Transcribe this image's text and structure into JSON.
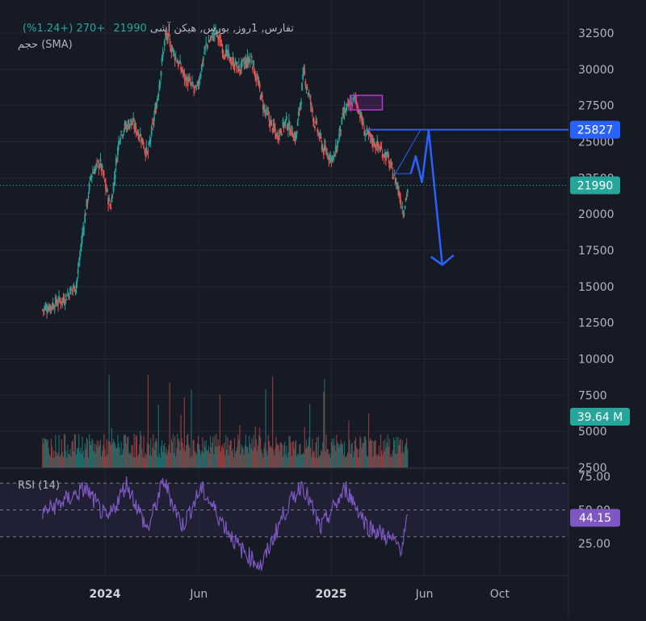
{
  "legend": {
    "symbol": "تفارس, 1روز, بورس, هیکن آشی",
    "price": "21990",
    "change": "+270 (+1.24%)",
    "volume_label": "حجم (SMA)"
  },
  "rsi_label": "RSI (14)",
  "colors": {
    "up": "#26a69a",
    "down": "#ef5350",
    "rsi": "#7e57c2",
    "projection": "#2962ff",
    "zone": "#9c27b0"
  },
  "chart_data": [
    {
      "type": "candlestick",
      "title": "",
      "candle_style": "Heikin Ashi",
      "x_tick_labels": [
        "2024",
        "Jun",
        "2025",
        "Jun",
        "Oct"
      ],
      "y_tick_labels": [
        "2500",
        "5000",
        "7500",
        "10000",
        "12500",
        "15000",
        "17500",
        "20000",
        "22500",
        "25000",
        "27500",
        "30000",
        "32500"
      ],
      "ylim": [
        2500,
        32500
      ],
      "grid": true,
      "last_price_label": "21990",
      "level_label": "25827",
      "approx_close_path": [
        {
          "x": "2023-09-22",
          "y": 13400
        },
        {
          "x": "2023-10-10",
          "y": 13800
        },
        {
          "x": "2023-10-28",
          "y": 14200
        },
        {
          "x": "2023-11-16",
          "y": 15200
        },
        {
          "x": "2023-11-26",
          "y": 18800
        },
        {
          "x": "2023-12-10",
          "y": 22800
        },
        {
          "x": "2023-12-24",
          "y": 23600
        },
        {
          "x": "2024-01-10",
          "y": 20400
        },
        {
          "x": "2024-01-25",
          "y": 25600
        },
        {
          "x": "2024-02-12",
          "y": 26400
        },
        {
          "x": "2024-02-28",
          "y": 25400
        },
        {
          "x": "2024-03-10",
          "y": 24000
        },
        {
          "x": "2024-03-25",
          "y": 27800
        },
        {
          "x": "2024-04-08",
          "y": 32400
        },
        {
          "x": "2024-04-25",
          "y": 30800
        },
        {
          "x": "2024-05-10",
          "y": 29400
        },
        {
          "x": "2024-05-28",
          "y": 28400
        },
        {
          "x": "2024-06-12",
          "y": 31600
        },
        {
          "x": "2024-06-28",
          "y": 32600
        },
        {
          "x": "2024-07-15",
          "y": 31000
        },
        {
          "x": "2024-08-05",
          "y": 30000
        },
        {
          "x": "2024-08-25",
          "y": 30800
        },
        {
          "x": "2024-09-15",
          "y": 27200
        },
        {
          "x": "2024-10-05",
          "y": 25400
        },
        {
          "x": "2024-10-20",
          "y": 26400
        },
        {
          "x": "2024-11-05",
          "y": 25200
        },
        {
          "x": "2024-11-18",
          "y": 29800
        },
        {
          "x": "2024-12-05",
          "y": 26400
        },
        {
          "x": "2024-12-20",
          "y": 24400
        },
        {
          "x": "2025-01-06",
          "y": 23800
        },
        {
          "x": "2025-01-22",
          "y": 27000
        },
        {
          "x": "2025-02-10",
          "y": 28000
        },
        {
          "x": "2025-02-25",
          "y": 25600
        },
        {
          "x": "2025-03-15",
          "y": 24800
        },
        {
          "x": "2025-04-01",
          "y": 24000
        },
        {
          "x": "2025-04-18",
          "y": 22000
        },
        {
          "x": "2025-04-28",
          "y": 20200
        },
        {
          "x": "2025-05-06",
          "y": 21990
        }
      ],
      "annotations": [
        {
          "type": "horizontal_line",
          "y": 25827
        },
        {
          "type": "horizontal_line",
          "y": 21990
        },
        {
          "type": "rectangle",
          "x": [
            "2025-02-01",
            "2025-03-25"
          ],
          "y": [
            27200,
            28200
          ]
        },
        {
          "type": "projection_path",
          "points": [
            {
              "x": "2025-05-10",
              "y": 22800
            },
            {
              "x": "2025-05-18",
              "y": 24000
            },
            {
              "x": "2025-05-28",
              "y": 22200
            },
            {
              "x": "2025-06-08",
              "y": 25800
            },
            {
              "x": "2025-06-30",
              "y": 16500
            }
          ]
        }
      ]
    },
    {
      "type": "bar",
      "series": [
        {
          "name": "حجم (SMA)"
        }
      ],
      "last_value_label": "39.64 M"
    },
    {
      "type": "line",
      "title": "RSI (14)",
      "y_tick_labels": [
        "25.00",
        "50.00",
        "75.00"
      ],
      "ylim": [
        0,
        85
      ],
      "bands": [
        30,
        50,
        70
      ],
      "last_value_label": "44.15",
      "approx_values": [
        {
          "x": "2023-09-22",
          "y": 48
        },
        {
          "x": "2023-11-01",
          "y": 58
        },
        {
          "x": "2023-12-01",
          "y": 66
        },
        {
          "x": "2024-01-05",
          "y": 42
        },
        {
          "x": "2024-02-05",
          "y": 70
        },
        {
          "x": "2024-03-10",
          "y": 35
        },
        {
          "x": "2024-04-05",
          "y": 72
        },
        {
          "x": "2024-05-05",
          "y": 38
        },
        {
          "x": "2024-06-05",
          "y": 66
        },
        {
          "x": "2024-07-05",
          "y": 44
        },
        {
          "x": "2024-08-05",
          "y": 22
        },
        {
          "x": "2024-09-10",
          "y": 8
        },
        {
          "x": "2024-10-15",
          "y": 46
        },
        {
          "x": "2024-11-15",
          "y": 70
        },
        {
          "x": "2024-12-15",
          "y": 36
        },
        {
          "x": "2025-01-25",
          "y": 66
        },
        {
          "x": "2025-03-01",
          "y": 38
        },
        {
          "x": "2025-04-01",
          "y": 30
        },
        {
          "x": "2025-04-25",
          "y": 22
        },
        {
          "x": "2025-05-06",
          "y": 44.15
        }
      ]
    }
  ]
}
